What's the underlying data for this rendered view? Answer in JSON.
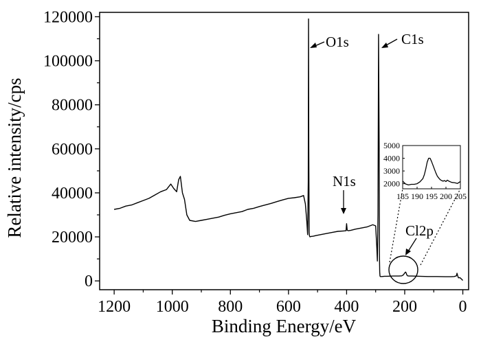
{
  "chart_data": [
    {
      "type": "line",
      "title": "",
      "xlabel": "Binding Energy/eV",
      "ylabel": "Relative intensity/cps",
      "xlim": [
        1250,
        -20
      ],
      "ylim": [
        -4000,
        122000
      ],
      "x_reversed": true,
      "grid": false,
      "x_ticks": [
        {
          "value": 1200,
          "label": "1200"
        },
        {
          "value": 1000,
          "label": "1000"
        },
        {
          "value": 800,
          "label": "800"
        },
        {
          "value": 600,
          "label": "600"
        },
        {
          "value": 400,
          "label": "400"
        },
        {
          "value": 200,
          "label": "200"
        },
        {
          "value": 0,
          "label": "0"
        }
      ],
      "y_ticks": [
        {
          "value": 0,
          "label": "0"
        },
        {
          "value": 20000,
          "label": "20000"
        },
        {
          "value": 40000,
          "label": "40000"
        },
        {
          "value": 60000,
          "label": "60000"
        },
        {
          "value": 80000,
          "label": "80000"
        },
        {
          "value": 100000,
          "label": "100000"
        },
        {
          "value": 120000,
          "label": "120000"
        }
      ],
      "series": [
        {
          "color": "#000000",
          "x": [
            1200,
            1180,
            1160,
            1140,
            1120,
            1100,
            1080,
            1060,
            1040,
            1020,
            1005,
            995,
            985,
            978,
            972,
            965,
            958,
            950,
            940,
            920,
            900,
            880,
            860,
            840,
            820,
            800,
            780,
            760,
            740,
            720,
            700,
            680,
            660,
            640,
            620,
            600,
            580,
            560,
            548,
            542,
            537,
            534,
            532,
            531,
            530,
            529,
            528,
            526,
            522,
            515,
            505,
            490,
            470,
            450,
            430,
            410,
            402,
            400,
            398,
            394,
            385,
            370,
            350,
            330,
            310,
            300,
            296,
            294,
            292,
            290,
            288,
            287,
            286,
            285,
            284,
            282,
            278,
            270,
            260,
            240,
            220,
            210,
            205,
            200,
            197,
            195,
            193,
            190,
            185,
            175,
            150,
            120,
            90,
            60,
            40,
            30,
            22,
            20,
            18,
            15,
            10,
            5,
            0
          ],
          "y": [
            32500,
            33000,
            34000,
            34500,
            35500,
            36500,
            37500,
            39000,
            40500,
            41500,
            44000,
            42000,
            40500,
            46000,
            47500,
            40000,
            37000,
            30000,
            27500,
            27000,
            27500,
            28000,
            28500,
            29000,
            29800,
            30500,
            31000,
            31500,
            32500,
            33000,
            33800,
            34500,
            35200,
            36000,
            36800,
            37500,
            37800,
            38200,
            38800,
            35000,
            27000,
            21000,
            45000,
            119000,
            60000,
            22000,
            20500,
            20000,
            20200,
            20300,
            20600,
            21000,
            21500,
            22000,
            22500,
            22700,
            22800,
            26000,
            23000,
            22800,
            23000,
            23500,
            24000,
            24500,
            25500,
            25000,
            15000,
            9000,
            30000,
            112000,
            60000,
            12000,
            4000,
            2200,
            2000,
            2000,
            2000,
            2100,
            2100,
            2200,
            2200,
            2300,
            2700,
            3600,
            4000,
            3600,
            2800,
            2300,
            2200,
            2200,
            2100,
            2000,
            2000,
            1900,
            1900,
            2000,
            2300,
            3500,
            2500,
            1400,
            1500,
            900,
            200
          ]
        }
      ],
      "annotations": [
        {
          "text": "O1s",
          "x": 530
        },
        {
          "text": "C1s",
          "x": 285
        },
        {
          "text": "N1s",
          "x": 400
        },
        {
          "text": "Cl2p",
          "x": 200
        }
      ]
    },
    {
      "type": "line",
      "title": "",
      "xlabel": "",
      "ylabel": "",
      "xlim": [
        185,
        205
      ],
      "ylim": [
        1600,
        5000
      ],
      "x_ticks": [
        {
          "value": 185,
          "label": "185"
        },
        {
          "value": 190,
          "label": "190"
        },
        {
          "value": 195,
          "label": "195"
        },
        {
          "value": 200,
          "label": "200"
        },
        {
          "value": 205,
          "label": "205"
        }
      ],
      "y_ticks": [
        {
          "value": 2000,
          "label": "2000"
        },
        {
          "value": 3000,
          "label": "3000"
        },
        {
          "value": 4000,
          "label": "4000"
        },
        {
          "value": 5000,
          "label": "5000"
        }
      ],
      "series": [
        {
          "color": "#000000",
          "x": [
            185,
            186,
            187,
            188,
            189,
            190,
            191,
            192,
            192.5,
            193,
            193.5,
            194,
            194.5,
            195,
            195.5,
            196,
            196.5,
            197,
            197.5,
            198,
            198.5,
            199,
            199.5,
            200,
            200.5,
            201,
            202,
            203,
            204,
            205
          ],
          "y": [
            2200,
            1980,
            1900,
            1950,
            1950,
            2000,
            2150,
            2400,
            2700,
            3150,
            3700,
            4000,
            4000,
            3750,
            3450,
            3150,
            2850,
            2600,
            2450,
            2320,
            2250,
            2200,
            2250,
            2170,
            2280,
            2200,
            2100,
            2080,
            2020,
            2170
          ]
        }
      ]
    }
  ]
}
